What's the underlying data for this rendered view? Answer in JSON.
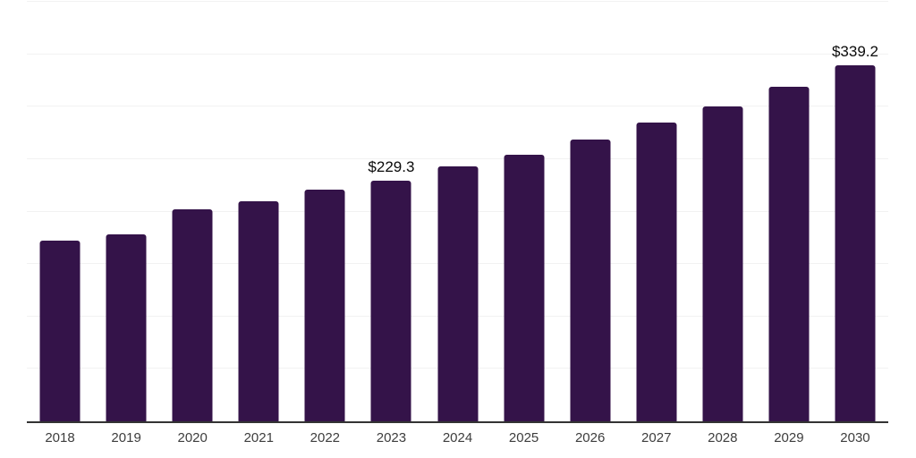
{
  "chart_data": {
    "type": "bar",
    "title": "",
    "xlabel": "",
    "ylabel": "",
    "categories": [
      "2018",
      "2019",
      "2020",
      "2021",
      "2022",
      "2023",
      "2024",
      "2025",
      "2026",
      "2027",
      "2028",
      "2029",
      "2030"
    ],
    "values": [
      172.4,
      177.9,
      201.8,
      209.5,
      220.9,
      229.3,
      242.7,
      254.0,
      269.1,
      284.7,
      300.4,
      319.4,
      339.2
    ],
    "data_labels": [
      null,
      null,
      null,
      null,
      null,
      "$229.3",
      null,
      null,
      null,
      null,
      null,
      null,
      "$339.2"
    ],
    "value_prefix": "$",
    "ylim": [
      0,
      400
    ],
    "gridline_step": 50,
    "grid": true,
    "legend_position": "none",
    "colors": {
      "bar": "#341349",
      "axis": "#333333",
      "gridline": "#f2f2f2",
      "data_label": "#0a0a0a",
      "tick_label": "#3d3d3d",
      "background": "#ffffff"
    }
  }
}
